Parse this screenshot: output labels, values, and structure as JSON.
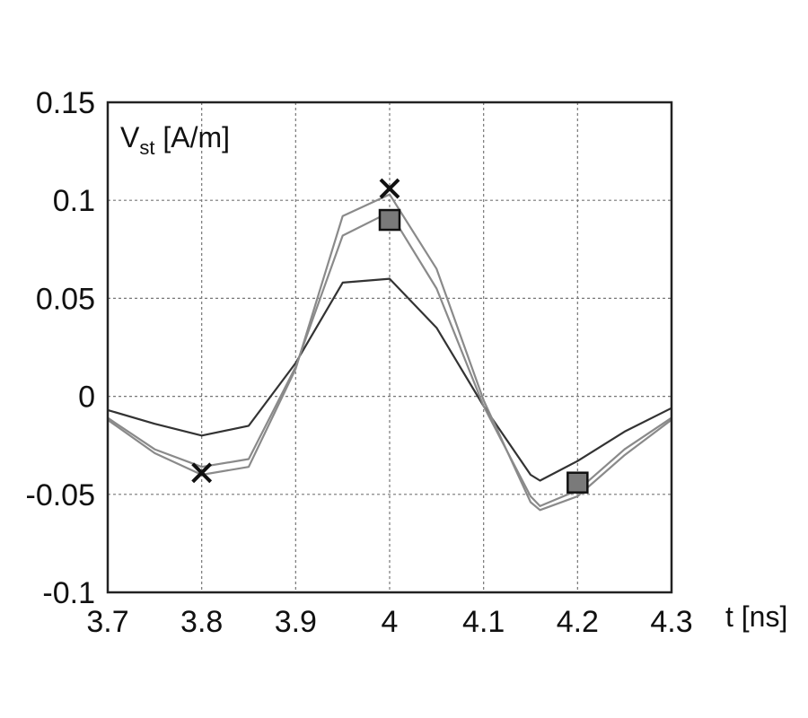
{
  "chart_data": {
    "type": "line",
    "xlabel": "t [ns]",
    "ylabel": {
      "base": "V",
      "sub": "st",
      "unit": " [A/m]"
    },
    "xlim": [
      3.7,
      4.3
    ],
    "ylim": [
      -0.1,
      0.15
    ],
    "xticks": [
      3.7,
      3.8,
      3.9,
      4.0,
      4.1,
      4.2,
      4.3
    ],
    "xtick_labels": [
      "3.7",
      "3.8",
      "3.9",
      "4",
      "4.1",
      "4.2",
      "4.3"
    ],
    "yticks": [
      -0.1,
      -0.05,
      0,
      0.05,
      0.1,
      0.15
    ],
    "ytick_labels": [
      "-0.1",
      "-0.05",
      "0",
      "0.05",
      "0.1",
      "0.15"
    ],
    "grid": true,
    "colors": {
      "curve_dark": "#333333",
      "curve_light": "#8a8a8a",
      "square_fill": "#7a7a7a",
      "marker_edge": "#111111"
    },
    "series": [
      {
        "x": [
          3.7,
          3.75,
          3.8,
          3.85,
          3.9,
          3.95,
          4.0,
          4.05,
          4.1,
          4.15,
          4.16,
          4.2,
          4.25,
          4.3
        ],
        "values": [
          -0.007,
          -0.014,
          -0.02,
          -0.015,
          0.017,
          0.058,
          0.06,
          0.035,
          -0.005,
          -0.04,
          -0.043,
          -0.033,
          -0.018,
          -0.006
        ]
      },
      {
        "x": [
          3.7,
          3.75,
          3.8,
          3.85,
          3.9,
          3.95,
          4.0,
          4.05,
          4.1,
          4.15,
          4.16,
          4.2,
          4.25,
          4.3
        ],
        "values": [
          -0.011,
          -0.027,
          -0.036,
          -0.032,
          0.015,
          0.082,
          0.094,
          0.055,
          -0.005,
          -0.051,
          -0.056,
          -0.048,
          -0.027,
          -0.011
        ]
      },
      {
        "x": [
          3.7,
          3.75,
          3.8,
          3.85,
          3.9,
          3.95,
          4.0,
          4.05,
          4.1,
          4.15,
          4.16,
          4.2,
          4.25,
          4.3
        ],
        "values": [
          -0.012,
          -0.029,
          -0.04,
          -0.036,
          0.014,
          0.092,
          0.103,
          0.065,
          -0.002,
          -0.054,
          -0.058,
          -0.051,
          -0.03,
          -0.012
        ]
      }
    ],
    "markers": [
      {
        "shape": "x",
        "x": 3.8,
        "y": -0.039
      },
      {
        "shape": "x",
        "x": 4.0,
        "y": 0.106
      },
      {
        "shape": "square",
        "x": 4.0,
        "y": 0.09
      },
      {
        "shape": "square",
        "x": 4.2,
        "y": -0.044
      }
    ]
  }
}
